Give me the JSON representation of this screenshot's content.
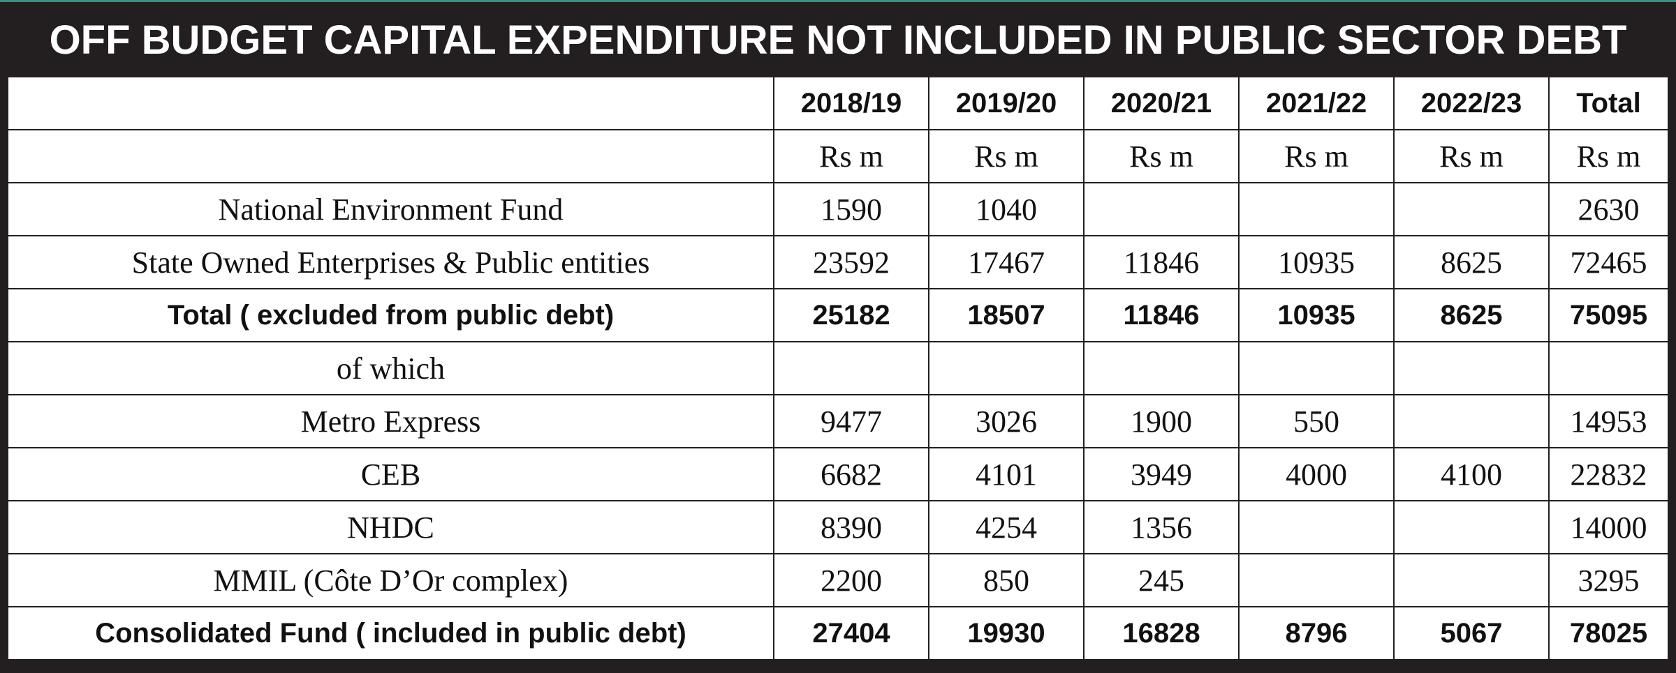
{
  "title": "OFF BUDGET CAPITAL EXPENDITURE NOT INCLUDED IN PUBLIC SECTOR DEBT",
  "columns": [
    "2018/19",
    "2019/20",
    "2020/21",
    "2021/22",
    "2022/23",
    "Total"
  ],
  "units": [
    "Rs m",
    "Rs m",
    "Rs m",
    "Rs m",
    "Rs m",
    "Rs m"
  ],
  "rows": [
    {
      "label": "National Environment Fund",
      "values": [
        "1590",
        "1040",
        "",
        "",
        "",
        "2630"
      ],
      "bold": false
    },
    {
      "label": "State Owned Enterprises & Public entities",
      "values": [
        "23592",
        "17467",
        "11846",
        "10935",
        "8625",
        "72465"
      ],
      "bold": false
    },
    {
      "label": "Total ( excluded from public debt)",
      "values": [
        "25182",
        "18507",
        "11846",
        "10935",
        "8625",
        "75095"
      ],
      "bold": true
    },
    {
      "label": "of which",
      "values": [
        "",
        "",
        "",
        "",
        "",
        ""
      ],
      "bold": false
    },
    {
      "label": "Metro Express",
      "values": [
        "9477",
        "3026",
        "1900",
        "550",
        "",
        "14953"
      ],
      "bold": false
    },
    {
      "label": "CEB",
      "values": [
        "6682",
        "4101",
        "3949",
        "4000",
        "4100",
        "22832"
      ],
      "bold": false
    },
    {
      "label": "NHDC",
      "values": [
        "8390",
        "4254",
        "1356",
        "",
        "",
        "14000"
      ],
      "bold": false
    },
    {
      "label": "MMIL (Côte D’Or complex)",
      "values": [
        "2200",
        "850",
        "245",
        "",
        "",
        "3295"
      ],
      "bold": false
    },
    {
      "label": "Consolidated Fund ( included in public debt)",
      "values": [
        "27404",
        "19930",
        "16828",
        "8796",
        "5067",
        "78025"
      ],
      "bold": true
    }
  ]
}
